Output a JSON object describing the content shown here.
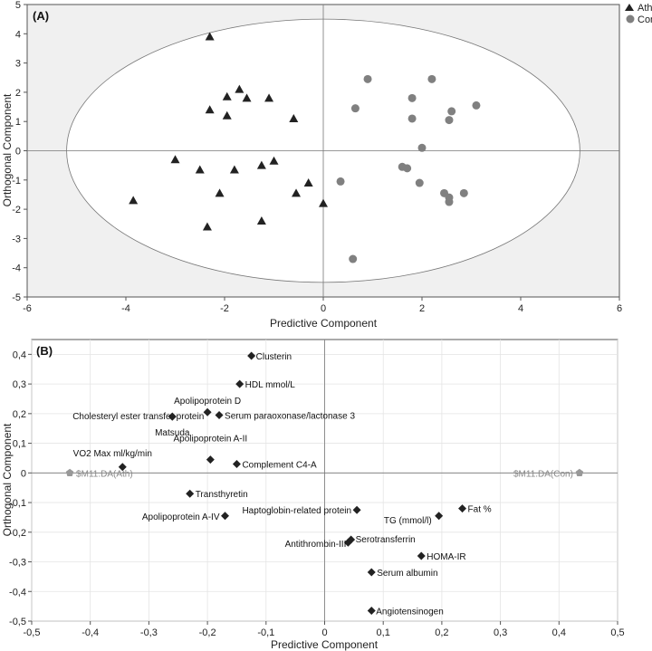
{
  "chart_data": [
    {
      "type": "scatter",
      "panel_label": "(A)",
      "xlabel": "Predictive Component",
      "ylabel": "Orthogonal Component",
      "xlim": [
        -6,
        6
      ],
      "ylim": [
        -5,
        5
      ],
      "xticks": [
        "-6",
        "-4",
        "-2",
        "0",
        "2",
        "4",
        "6"
      ],
      "yticks": [
        "-5",
        "-4",
        "-3",
        "-2",
        "-1",
        "0",
        "1",
        "2",
        "3",
        "4",
        "5"
      ],
      "ellipse": {
        "cx": 0,
        "cy": 0,
        "rx": 5.2,
        "ry": 4.5
      },
      "legend": [
        {
          "name": "Ath",
          "marker": "triangle"
        },
        {
          "name": "Con",
          "marker": "circle"
        }
      ],
      "series": [
        {
          "name": "Ath",
          "marker": "triangle",
          "color": "#222222",
          "points": [
            [
              -2.3,
              3.9
            ],
            [
              -1.7,
              2.1
            ],
            [
              -1.95,
              1.85
            ],
            [
              -1.55,
              1.8
            ],
            [
              -1.1,
              1.8
            ],
            [
              -2.3,
              1.4
            ],
            [
              -1.95,
              1.2
            ],
            [
              -0.6,
              1.1
            ],
            [
              -3.0,
              -0.3
            ],
            [
              -1.0,
              -0.35
            ],
            [
              -1.25,
              -0.5
            ],
            [
              -2.5,
              -0.65
            ],
            [
              -1.8,
              -0.65
            ],
            [
              -0.3,
              -1.1
            ],
            [
              -2.1,
              -1.45
            ],
            [
              -0.55,
              -1.45
            ],
            [
              -3.85,
              -1.7
            ],
            [
              0.0,
              -1.8
            ],
            [
              -1.25,
              -2.4
            ],
            [
              -2.35,
              -2.6
            ]
          ]
        },
        {
          "name": "Con",
          "marker": "circle",
          "color": "#808080",
          "points": [
            [
              0.9,
              2.45
            ],
            [
              2.2,
              2.45
            ],
            [
              1.8,
              1.8
            ],
            [
              0.65,
              1.45
            ],
            [
              2.6,
              1.35
            ],
            [
              3.1,
              1.55
            ],
            [
              1.8,
              1.1
            ],
            [
              2.55,
              1.05
            ],
            [
              2.0,
              0.1
            ],
            [
              1.6,
              -0.55
            ],
            [
              1.7,
              -0.6
            ],
            [
              0.35,
              -1.05
            ],
            [
              1.95,
              -1.1
            ],
            [
              2.45,
              -1.45
            ],
            [
              2.85,
              -1.45
            ],
            [
              2.55,
              -1.6
            ],
            [
              2.55,
              -1.75
            ],
            [
              0.6,
              -3.7
            ]
          ]
        }
      ]
    },
    {
      "type": "scatter",
      "panel_label": "(B)",
      "xlabel": "Predictive Component",
      "ylabel": "Orthogonal Component",
      "xlim": [
        -0.5,
        0.5
      ],
      "ylim": [
        -0.5,
        0.45
      ],
      "xticks": [
        "-0,5",
        "-0,4",
        "-0,3",
        "-0,2",
        "-0,1",
        "0",
        "0,1",
        "0,2",
        "0,3",
        "0,4",
        "0,5"
      ],
      "yticks": [
        "0,4",
        "0,3",
        "0,2",
        "0,1",
        "0",
        "-0,1",
        "-0,2",
        "-0,3",
        "-0,4",
        "-0,5"
      ],
      "loadings": [
        {
          "label": "Clusterin",
          "x": -0.125,
          "y": 0.395
        },
        {
          "label": "HDL mmol/L",
          "x": -0.145,
          "y": 0.3
        },
        {
          "label": "Apolipoprotein D",
          "x": -0.2,
          "y": 0.205
        },
        {
          "label": "Cholesteryl ester transfer protein",
          "x": -0.26,
          "y": 0.19
        },
        {
          "label": "Serum paraoxonase/lactonase 3",
          "x": -0.18,
          "y": 0.195
        },
        {
          "label": "Matsuda",
          "x": -0.26,
          "y": 0.19
        },
        {
          "label": "Apolipoprotein A-II",
          "x": -0.195,
          "y": 0.045
        },
        {
          "label": "Complement C4-A",
          "x": -0.15,
          "y": 0.03
        },
        {
          "label": "VO2 Max ml/kg/min",
          "x": -0.345,
          "y": 0.02
        },
        {
          "label": "Transthyretin",
          "x": -0.23,
          "y": -0.07
        },
        {
          "label": "Apolipoprotein A-IV",
          "x": -0.17,
          "y": -0.145
        },
        {
          "label": "Haptoglobin-related protein",
          "x": 0.055,
          "y": -0.125
        },
        {
          "label": "TG (mmol/l)",
          "x": 0.195,
          "y": -0.145
        },
        {
          "label": "Fat  %",
          "x": 0.235,
          "y": -0.12
        },
        {
          "label": "Serotransferrin",
          "x": 0.045,
          "y": -0.225
        },
        {
          "label": "Antithrombin-III",
          "x": 0.04,
          "y": -0.235
        },
        {
          "label": "HOMA-IR",
          "x": 0.165,
          "y": -0.28
        },
        {
          "label": "Serum albumin",
          "x": 0.08,
          "y": -0.335
        },
        {
          "label": "Angiotensinogen",
          "x": 0.08,
          "y": -0.465
        }
      ],
      "class_loadings": [
        {
          "label": "$M11.DA(Ath)",
          "x": -0.435,
          "y": 0.0
        },
        {
          "label": "$M11.DA(Con)",
          "x": 0.435,
          "y": 0.0
        }
      ]
    }
  ]
}
